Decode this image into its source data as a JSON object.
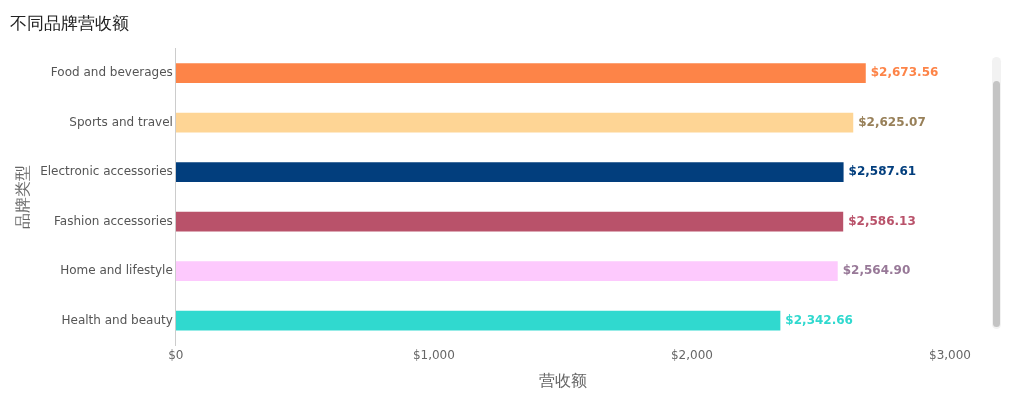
{
  "chart_data": {
    "type": "bar",
    "orientation": "horizontal",
    "title": "不同品牌营收额",
    "xlabel": "营收额",
    "ylabel": "品牌类型",
    "categories": [
      "Food and beverages",
      "Sports and travel",
      "Electronic accessories",
      "Fashion accessories",
      "Home and lifestyle",
      "Health and beauty"
    ],
    "values": [
      2673.56,
      2625.07,
      2587.61,
      2586.13,
      2564.9,
      2342.66
    ],
    "colors": [
      "#fd8448",
      "#fed595",
      "#023e7d",
      "#b9526a",
      "#fdc9fd",
      "#30d9cf"
    ],
    "xlim": [
      0,
      3000
    ],
    "xticks": [
      {
        "value": 0,
        "label": "$0"
      },
      {
        "value": 1000,
        "label": "$1,000"
      },
      {
        "value": 2000,
        "label": "$2,000"
      },
      {
        "value": 3000,
        "label": "$3,000"
      }
    ],
    "value_labels": [
      "$2,673.56",
      "$2,625.07",
      "$2,587.61",
      "$2,586.13",
      "$2,564.90",
      "$2,342.66"
    ],
    "grid": false,
    "legend": false
  }
}
